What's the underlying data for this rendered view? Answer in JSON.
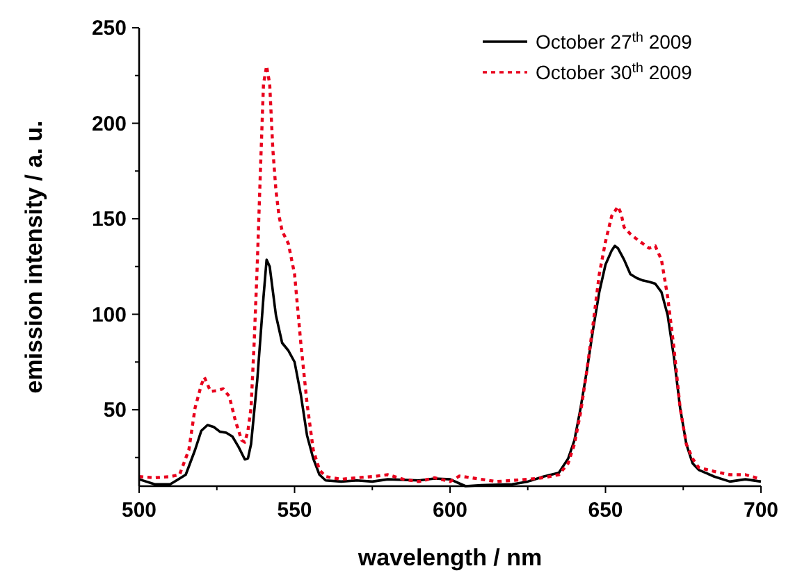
{
  "chart_data": {
    "type": "line",
    "xlabel": "wavelength / nm",
    "ylabel": "emission intensity / a. u.",
    "xlim": [
      500,
      700
    ],
    "ylim": [
      10,
      250
    ],
    "xticks": [
      500,
      {
        "value": 525,
        "label": null
      },
      550,
      {
        "value": 575,
        "label": null
      },
      600,
      {
        "value": 625,
        "label": null
      },
      650,
      {
        "value": 675,
        "label": null
      },
      700
    ],
    "yticks": [
      {
        "value": 25,
        "label": null
      },
      50,
      {
        "value": 75,
        "label": null
      },
      100,
      {
        "value": 125,
        "label": null
      },
      150,
      {
        "value": 175,
        "label": null
      },
      200,
      {
        "value": 225,
        "label": null
      },
      250
    ],
    "grid": false,
    "legend": "top right",
    "series": [
      {
        "name": "October 27$^{th}$ 2009",
        "color": "#000000",
        "line_style": "solid",
        "x": [
          500,
          505,
          510,
          515,
          518,
          520,
          522,
          524,
          526,
          528,
          530,
          532,
          534,
          535,
          536,
          538,
          540,
          541,
          542,
          544,
          546,
          548,
          550,
          552,
          554,
          556,
          558,
          560,
          565,
          570,
          575,
          580,
          590,
          595,
          600,
          605,
          610,
          620,
          625,
          630,
          635,
          638,
          640,
          642,
          644,
          646,
          648,
          650,
          652,
          653,
          654,
          656,
          658,
          660,
          662,
          664,
          666,
          668,
          670,
          672,
          674,
          676,
          678,
          680,
          685,
          690,
          695,
          700
        ],
        "values": [
          13.6,
          11,
          11,
          16,
          29,
          39,
          42,
          41,
          38.5,
          38,
          36,
          30.5,
          24,
          24.5,
          32,
          65.6,
          109,
          128.5,
          125,
          99.5,
          85,
          81,
          75,
          58,
          36.6,
          24.5,
          16,
          13,
          12.4,
          13,
          12.4,
          13.6,
          13,
          14,
          13.6,
          10,
          10.5,
          11,
          12.4,
          15,
          17,
          24.5,
          34,
          51,
          70.5,
          92,
          111.6,
          126,
          133.4,
          135.8,
          134.6,
          128.5,
          121,
          119,
          117.7,
          117,
          116,
          111.6,
          99.5,
          77.7,
          51,
          32,
          22,
          18.5,
          15,
          12.4,
          13.6,
          12.4
        ]
      },
      {
        "name": "October 30$^{th}$ 2009",
        "color": "#e8001c",
        "line_style": "dotted",
        "x": [
          500,
          505,
          510,
          513,
          516,
          518,
          520,
          521,
          523,
          525,
          527,
          529,
          531,
          533,
          534,
          535,
          536,
          537,
          538,
          539,
          540,
          541,
          542,
          543,
          544,
          545,
          546,
          548,
          550,
          552,
          554,
          556,
          558,
          560,
          565,
          570,
          575,
          580,
          585,
          590,
          595,
          600,
          603,
          610,
          615,
          620,
          625,
          630,
          635,
          638,
          640,
          642,
          644,
          646,
          648,
          650,
          652,
          654,
          655,
          656,
          658,
          660,
          662,
          664,
          666,
          668,
          670,
          672,
          674,
          676,
          678,
          680,
          685,
          690,
          695,
          700
        ],
        "values": [
          15,
          14.4,
          15,
          16,
          29,
          51,
          63,
          67,
          59.6,
          60,
          61,
          57,
          44,
          34,
          33,
          39,
          51,
          85,
          126,
          174.5,
          220.5,
          230,
          220.5,
          186.6,
          165,
          151.5,
          143.6,
          137,
          121,
          85,
          53.5,
          29,
          18.5,
          15,
          13.6,
          14.4,
          15,
          16,
          13.6,
          12.4,
          14.4,
          12.4,
          15.3,
          13.6,
          12.4,
          13,
          13.6,
          14.4,
          16,
          22,
          32,
          48.7,
          70.5,
          94.7,
          121,
          138,
          151.5,
          156.4,
          152.8,
          145.5,
          142,
          139.4,
          137,
          134.6,
          135.8,
          128.5,
          109,
          82.6,
          51,
          32,
          24.5,
          19.7,
          17.7,
          16,
          16,
          13.6
        ]
      }
    ]
  }
}
